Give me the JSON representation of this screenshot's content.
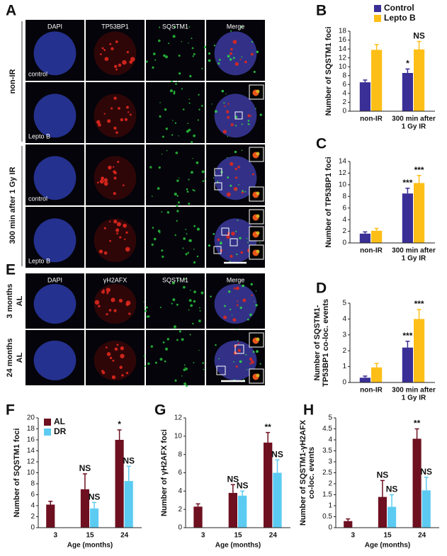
{
  "image_panels": [
    {
      "letter": "A",
      "columns": [
        "DAPI",
        "TP53BP1",
        "SQSTM1",
        "Merge"
      ],
      "image_labels": [
        "control",
        "Lepto B",
        "control",
        "Lepto B"
      ],
      "group_labels": [
        "non-IR",
        "300 min after 1 Gy IR"
      ]
    },
    {
      "letter": "E",
      "columns": [
        "DAPI",
        "γH2AFX",
        "SQSTM1",
        "Merge"
      ],
      "row_labels": [
        [
          "3 months",
          "AL"
        ],
        [
          "24 months",
          "AL"
        ]
      ]
    }
  ],
  "chart_data": [
    {
      "type": "bar",
      "letter": "B",
      "ylabel": "Number of SQSTM1 foci",
      "categories": [
        "non-IR",
        [
          "300 min after",
          "1 Gy IR"
        ]
      ],
      "ylim": [
        0,
        18
      ],
      "yticks": [
        0,
        2,
        4,
        6,
        8,
        10,
        12,
        14,
        16,
        18
      ],
      "legend": "upper right",
      "series": [
        {
          "name": "Control",
          "color": "#3a2f96",
          "values": [
            6.5,
            8.6
          ],
          "errors": [
            0.5,
            0.9
          ],
          "annotations": [
            null,
            "*"
          ]
        },
        {
          "name": "Lepto B",
          "color": "#fdbf17",
          "values": [
            13.8,
            13.9
          ],
          "errors": [
            1.2,
            1.8
          ],
          "annotations": [
            null,
            "NS"
          ]
        }
      ]
    },
    {
      "type": "bar",
      "letter": "C",
      "ylabel": "Number of TP53BP1 foci",
      "categories": [
        "non-IR",
        [
          "300 min after",
          "1 Gy IR"
        ]
      ],
      "ylim": [
        0,
        14
      ],
      "yticks": [
        0,
        2,
        4,
        6,
        8,
        10,
        12,
        14
      ],
      "series": [
        {
          "color": "#3a2f96",
          "values": [
            1.6,
            8.5
          ],
          "errors": [
            0.3,
            0.9
          ],
          "annotations": [
            null,
            "***"
          ]
        },
        {
          "color": "#fdbf17",
          "values": [
            2.1,
            10.3
          ],
          "errors": [
            0.4,
            1.3
          ],
          "annotations": [
            null,
            "***"
          ]
        }
      ]
    },
    {
      "type": "bar",
      "letter": "D",
      "ylabel": [
        "Number of SQSTM1-",
        "TP53BP1 co-loc. events"
      ],
      "categories": [
        "non-IR",
        [
          "300 min after",
          "1 Gy IR"
        ]
      ],
      "ylim": [
        0,
        5
      ],
      "yticks": [
        0,
        1,
        2,
        3,
        4,
        5
      ],
      "series": [
        {
          "color": "#3a2f96",
          "values": [
            0.3,
            2.2
          ],
          "errors": [
            0.1,
            0.4
          ],
          "annotations": [
            null,
            "***"
          ]
        },
        {
          "color": "#fdbf17",
          "values": [
            0.95,
            4.0
          ],
          "errors": [
            0.25,
            0.6
          ],
          "annotations": [
            null,
            "***"
          ]
        }
      ]
    },
    {
      "type": "bar",
      "letter": "F",
      "ylabel": "Number of SQSTM1 foci",
      "xlabel": "Age (months)",
      "categories": [
        "3",
        "15",
        "24"
      ],
      "ylim": [
        0,
        20
      ],
      "yticks": [
        0,
        2,
        4,
        6,
        8,
        10,
        12,
        14,
        16,
        18,
        20
      ],
      "legend": "upper left",
      "series": [
        {
          "name": "AL",
          "color": "#6e1020",
          "values": [
            4.2,
            7.0,
            16.0
          ],
          "errors": [
            0.6,
            2.8,
            1.8
          ],
          "annotations": [
            null,
            "NS",
            "*"
          ]
        },
        {
          "name": "DR",
          "color": "#5ccbf2",
          "values": [
            null,
            3.5,
            8.5
          ],
          "errors": [
            null,
            1.1,
            2.7
          ],
          "annotations": [
            null,
            "NS",
            "NS"
          ]
        }
      ]
    },
    {
      "type": "bar",
      "letter": "G",
      "ylabel": "Number of γH2AFX foci",
      "xlabel": "Age (months)",
      "categories": [
        "3",
        "15",
        "24"
      ],
      "ylim": [
        0,
        12
      ],
      "yticks": [
        0,
        2,
        4,
        6,
        8,
        10,
        12
      ],
      "series": [
        {
          "color": "#6e1020",
          "values": [
            2.3,
            3.8,
            9.3
          ],
          "errors": [
            0.3,
            0.9,
            1.1
          ],
          "annotations": [
            null,
            "NS",
            "**"
          ]
        },
        {
          "color": "#5ccbf2",
          "values": [
            null,
            3.5,
            6.0
          ],
          "errors": [
            null,
            0.5,
            1.4
          ],
          "annotations": [
            null,
            "NS",
            "NS"
          ]
        }
      ]
    },
    {
      "type": "bar",
      "letter": "H",
      "ylabel": [
        "Number of SQSTM1-γH2AFX",
        "co-loc. events"
      ],
      "xlabel": "Age (months)",
      "categories": [
        "3",
        "15",
        "24"
      ],
      "ylim": [
        0,
        5
      ],
      "yticks": [
        0,
        0.5,
        1,
        1.5,
        2,
        2.5,
        3,
        3.5,
        4,
        4.5,
        5
      ],
      "series": [
        {
          "color": "#6e1020",
          "values": [
            0.3,
            1.4,
            4.05
          ],
          "errors": [
            0.1,
            0.75,
            0.45
          ],
          "annotations": [
            null,
            "NS",
            "**"
          ]
        },
        {
          "color": "#5ccbf2",
          "values": [
            null,
            0.95,
            1.7
          ],
          "errors": [
            null,
            0.55,
            0.6
          ],
          "annotations": [
            null,
            "NS",
            "NS"
          ]
        }
      ]
    }
  ]
}
